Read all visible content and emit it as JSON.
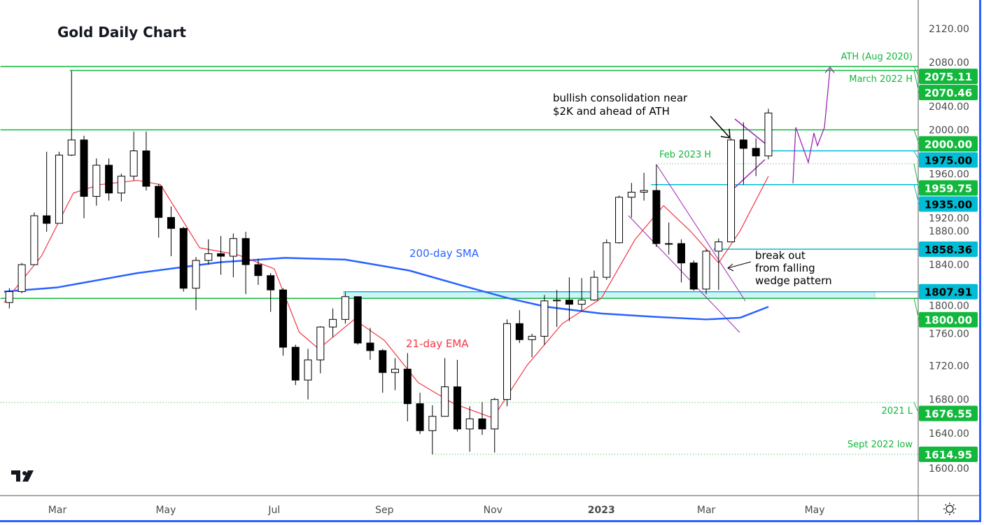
{
  "title": "Gold Daily Chart",
  "colors": {
    "green": "#12b83c",
    "cyan": "#00bcd4",
    "purple": "#9c27b0",
    "ema": "#f23645",
    "sma": "#2962ff",
    "candle_up": "#ffffff",
    "candle_down": "#000000"
  },
  "icons": {
    "logo": "tradingview-logo",
    "settings": "sun-gear-icon"
  },
  "chart_data": {
    "type": "candlestick",
    "title": "Gold Daily Chart",
    "note": "weekly OHLC approximation of the daily candles shown",
    "ylim": [
      1575,
      2150
    ],
    "y_ticks": [
      1600,
      1640,
      1680,
      1720,
      1760,
      1800,
      1840,
      1880,
      1920,
      1960,
      2000,
      2040,
      2080,
      2120
    ],
    "y_tick_labels": [
      "1600.00",
      "1640.00",
      "1680.00",
      "1720.00",
      "1760.00",
      "1800.00",
      "1840.00",
      "1880.00",
      "1920.00",
      "1960.00",
      "2000.00",
      "2040.00",
      "2080.00",
      "2120.00"
    ],
    "x_ticks": [
      {
        "date": "2022-03-01",
        "label": "Mar"
      },
      {
        "date": "2022-05-01",
        "label": "May"
      },
      {
        "date": "2022-07-01",
        "label": "Jul"
      },
      {
        "date": "2022-09-01",
        "label": "Sep"
      },
      {
        "date": "2022-11-01",
        "label": "Nov"
      },
      {
        "date": "2023-01-01",
        "label": "2023"
      },
      {
        "date": "2023-03-01",
        "label": "Mar"
      },
      {
        "date": "2023-05-01",
        "label": "May"
      }
    ],
    "candles": [
      [
        "2022-01-31",
        1795,
        1812,
        1788,
        1808
      ],
      [
        "2022-02-07",
        1808,
        1842,
        1806,
        1840
      ],
      [
        "2022-02-14",
        1840,
        1902,
        1840,
        1898
      ],
      [
        "2022-02-21",
        1898,
        1974,
        1879,
        1889
      ],
      [
        "2022-02-28",
        1889,
        1974,
        1889,
        1970
      ],
      [
        "2022-03-07",
        1970,
        2070,
        1969,
        1988
      ],
      [
        "2022-03-14",
        1988,
        1993,
        1895,
        1921
      ],
      [
        "2022-03-21",
        1921,
        1966,
        1910,
        1958
      ],
      [
        "2022-03-28",
        1958,
        1966,
        1916,
        1925
      ],
      [
        "2022-04-04",
        1925,
        1948,
        1915,
        1945
      ],
      [
        "2022-04-11",
        1945,
        1998,
        1940,
        1975
      ],
      [
        "2022-04-18",
        1975,
        1998,
        1928,
        1933
      ],
      [
        "2022-04-25",
        1933,
        1936,
        1872,
        1896
      ],
      [
        "2022-05-02",
        1896,
        1909,
        1850,
        1883
      ],
      [
        "2022-05-09",
        1883,
        1885,
        1808,
        1812
      ],
      [
        "2022-05-16",
        1812,
        1849,
        1786,
        1845
      ],
      [
        "2022-05-23",
        1845,
        1870,
        1840,
        1853
      ],
      [
        "2022-05-30",
        1853,
        1874,
        1828,
        1850
      ],
      [
        "2022-06-06",
        1850,
        1877,
        1825,
        1871
      ],
      [
        "2022-06-13",
        1871,
        1879,
        1805,
        1840
      ],
      [
        "2022-06-20",
        1840,
        1847,
        1816,
        1827
      ],
      [
        "2022-06-27",
        1827,
        1830,
        1784,
        1810
      ],
      [
        "2022-07-04",
        1810,
        1812,
        1732,
        1742
      ],
      [
        "2022-07-11",
        1742,
        1745,
        1697,
        1703
      ],
      [
        "2022-07-18",
        1703,
        1740,
        1680,
        1727
      ],
      [
        "2022-07-25",
        1727,
        1767,
        1711,
        1766
      ],
      [
        "2022-08-01",
        1766,
        1788,
        1754,
        1775
      ],
      [
        "2022-08-08",
        1775,
        1807,
        1770,
        1802
      ],
      [
        "2022-08-15",
        1802,
        1802,
        1745,
        1747
      ],
      [
        "2022-08-22",
        1747,
        1765,
        1727,
        1738
      ],
      [
        "2022-08-29",
        1738,
        1740,
        1688,
        1712
      ],
      [
        "2022-09-05",
        1712,
        1729,
        1691,
        1716
      ],
      [
        "2022-09-12",
        1716,
        1735,
        1654,
        1675
      ],
      [
        "2022-09-19",
        1675,
        1688,
        1639,
        1643
      ],
      [
        "2022-09-26",
        1643,
        1673,
        1615,
        1660
      ],
      [
        "2022-10-03",
        1660,
        1729,
        1660,
        1695
      ],
      [
        "2022-10-10",
        1695,
        1727,
        1642,
        1645
      ],
      [
        "2022-10-17",
        1645,
        1672,
        1618,
        1657
      ],
      [
        "2022-10-24",
        1657,
        1677,
        1638,
        1645
      ],
      [
        "2022-10-31",
        1645,
        1682,
        1617,
        1680
      ],
      [
        "2022-11-07",
        1680,
        1775,
        1672,
        1770
      ],
      [
        "2022-11-14",
        1770,
        1786,
        1747,
        1751
      ],
      [
        "2022-11-21",
        1751,
        1758,
        1730,
        1755
      ],
      [
        "2022-11-28",
        1755,
        1804,
        1745,
        1797
      ],
      [
        "2022-12-05",
        1797,
        1810,
        1766,
        1798
      ],
      [
        "2022-12-12",
        1798,
        1825,
        1773,
        1793
      ],
      [
        "2022-12-19",
        1793,
        1824,
        1784,
        1798
      ],
      [
        "2022-12-26",
        1798,
        1833,
        1797,
        1825
      ],
      [
        "2023-01-02",
        1825,
        1870,
        1822,
        1866
      ],
      [
        "2023-01-09",
        1866,
        1922,
        1865,
        1920
      ],
      [
        "2023-01-16",
        1920,
        1937,
        1896,
        1926
      ],
      [
        "2023-01-23",
        1926,
        1949,
        1916,
        1928
      ],
      [
        "2023-01-30",
        1928,
        1959,
        1861,
        1865
      ],
      [
        "2023-02-06",
        1865,
        1890,
        1852,
        1865
      ],
      [
        "2023-02-13",
        1865,
        1870,
        1819,
        1842
      ],
      [
        "2023-02-20",
        1842,
        1845,
        1809,
        1811
      ],
      [
        "2023-02-27",
        1811,
        1858,
        1805,
        1856
      ],
      [
        "2023-03-06",
        1856,
        1871,
        1810,
        1867
      ],
      [
        "2023-03-13",
        1867,
        1990,
        1867,
        1988
      ],
      [
        "2023-03-20",
        1988,
        2009,
        1935,
        1978
      ],
      [
        "2023-03-27",
        1978,
        1990,
        1945,
        1969
      ],
      [
        "2023-04-03",
        1969,
        2025,
        1965,
        2020
      ]
    ],
    "series": [
      {
        "name": "200-day SMA",
        "color": "#2962ff",
        "points": [
          [
            "2022-01-30",
            1808
          ],
          [
            "2022-03-01",
            1813
          ],
          [
            "2022-04-15",
            1830
          ],
          [
            "2022-06-01",
            1843
          ],
          [
            "2022-07-07",
            1848
          ],
          [
            "2022-08-10",
            1846
          ],
          [
            "2022-09-15",
            1833
          ],
          [
            "2022-10-15",
            1815
          ],
          [
            "2022-11-10",
            1800
          ],
          [
            "2022-12-01",
            1790
          ],
          [
            "2023-01-01",
            1782
          ],
          [
            "2023-02-01",
            1778
          ],
          [
            "2023-03-01",
            1775
          ],
          [
            "2023-03-20",
            1777
          ],
          [
            "2023-04-05",
            1790
          ]
        ]
      },
      {
        "name": "21-day EMA",
        "color": "#f23645",
        "points": [
          [
            "2022-01-30",
            1795
          ],
          [
            "2022-02-20",
            1850
          ],
          [
            "2022-03-10",
            1925
          ],
          [
            "2022-03-25",
            1935
          ],
          [
            "2022-04-15",
            1940
          ],
          [
            "2022-04-28",
            1935
          ],
          [
            "2022-05-20",
            1860
          ],
          [
            "2022-06-10",
            1852
          ],
          [
            "2022-07-01",
            1835
          ],
          [
            "2022-07-15",
            1760
          ],
          [
            "2022-07-26",
            1740
          ],
          [
            "2022-08-15",
            1775
          ],
          [
            "2022-09-01",
            1750
          ],
          [
            "2022-09-20",
            1700
          ],
          [
            "2022-10-10",
            1675
          ],
          [
            "2022-11-01",
            1658
          ],
          [
            "2022-11-20",
            1720
          ],
          [
            "2022-12-10",
            1770
          ],
          [
            "2023-01-01",
            1800
          ],
          [
            "2023-01-20",
            1870
          ],
          [
            "2023-02-05",
            1910
          ],
          [
            "2023-02-20",
            1880
          ],
          [
            "2023-03-08",
            1842
          ],
          [
            "2023-03-20",
            1880
          ],
          [
            "2023-04-05",
            1945
          ]
        ]
      }
    ],
    "levels": [
      {
        "price": 2075.11,
        "label": "2075.11",
        "note": "ATH (Aug 2020)",
        "style": "solid",
        "color": "green",
        "from": "2022-01-28"
      },
      {
        "price": 2070.46,
        "label": "2070.46",
        "note": "March 2022 H",
        "style": "solid",
        "color": "green",
        "from": "2022-03-08"
      },
      {
        "price": 2000.0,
        "label": "2000.00",
        "style": "solid",
        "color": "green",
        "from": "2022-01-28"
      },
      {
        "price": 1975.0,
        "label": "1975.00",
        "style": "solid",
        "color": "cyan",
        "from": "2023-04-03"
      },
      {
        "price": 1959.75,
        "label": "1959.75",
        "note": "Feb 2023 H",
        "style": "dotted",
        "color": "green",
        "from": "2023-02-02"
      },
      {
        "price": 1935.0,
        "label": "1935.00",
        "style": "solid",
        "color": "cyan",
        "from": "2023-01-29"
      },
      {
        "price": 1858.36,
        "label": "1858.36",
        "style": "solid",
        "color": "cyan",
        "from": "2023-03-05"
      },
      {
        "price": 1807.91,
        "label": "1807.91",
        "style": "solid",
        "color": "cyan",
        "from": "2022-08-09"
      },
      {
        "price": 1800.0,
        "label": "1800.00",
        "style": "solid",
        "color": "green",
        "from": "2022-01-28"
      },
      {
        "price": 1676.55,
        "label": "1676.55",
        "note": "2021 L",
        "style": "dotted",
        "color": "green",
        "from": "2022-01-28"
      },
      {
        "price": 1614.95,
        "label": "1614.95",
        "note": "Sept 2022 low",
        "style": "dotted",
        "color": "green",
        "from": "2022-09-28"
      }
    ],
    "annotations": {
      "consolidation": [
        "bullish consolidation near",
        "$2K and ahead of ATH"
      ],
      "breakout": [
        "break out",
        "from falling",
        "wedge pattern"
      ],
      "sma_label": "200-day SMA",
      "ema_label": "21-day EMA"
    }
  }
}
